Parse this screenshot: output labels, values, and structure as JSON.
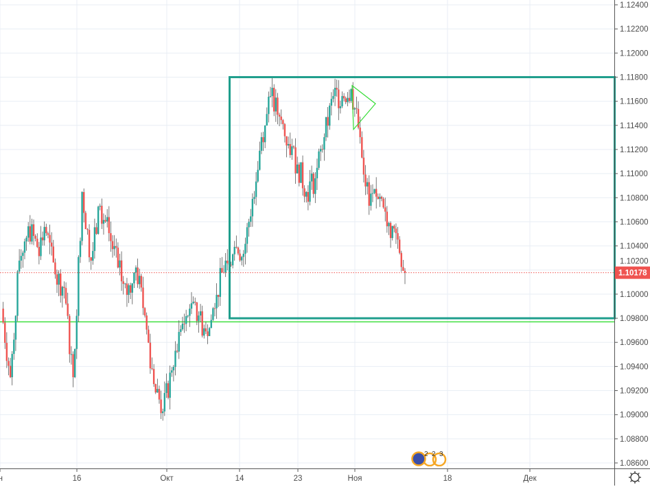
{
  "chart_data": {
    "type": "candlestick",
    "title": "",
    "xlabel": "",
    "ylabel": "",
    "x_tick_labels": [
      "н",
      "16",
      "Окт",
      "14",
      "23",
      "Ноя",
      "18",
      "Дек"
    ],
    "y_tick_labels": [
      "1.12400",
      "1.12200",
      "1.12000",
      "1.11800",
      "1.11600",
      "1.11400",
      "1.11200",
      "1.11000",
      "1.10800",
      "1.10600",
      "1.10400",
      "1.10200",
      "1.10000",
      "1.09800",
      "1.09600",
      "1.09400",
      "1.09200",
      "1.09000",
      "1.08800",
      "1.08600"
    ],
    "ylim": [
      1.0856,
      1.1244
    ],
    "grid": true,
    "closes": [
      1.0988,
      1.09311,
      1.10278,
      1.10563,
      1.10392,
      1.10506,
      1.10164,
      1.10051,
      1.09311,
      1.10847,
      1.10278,
      1.10733,
      1.10506,
      1.10221,
      1.09994,
      1.10221,
      1.09823,
      1.09254,
      1.09027,
      1.09368,
      1.09709,
      1.0988,
      1.09823,
      1.09652,
      1.09994,
      1.10278,
      1.10392,
      1.10335,
      1.1079,
      1.11302,
      1.11643,
      1.11473,
      1.11245,
      1.11075,
      1.10847,
      1.10961,
      1.11302,
      1.11643,
      1.11643,
      1.117,
      1.11302,
      1.10733,
      1.1079,
      1.10563,
      1.10506,
      1.10178
    ],
    "last_price": "1.10178",
    "rectangle": {
      "top_price": 1.118,
      "bottom_price": 1.098,
      "color": "#1e9e8c"
    },
    "horizontal_line": {
      "price": 1.0977,
      "color": "#33dd33"
    },
    "triangle": {
      "points_price": [
        1.1173,
        1.1158,
        1.1148
      ],
      "color": "#33dd33"
    },
    "colors": {
      "up": "#26a69a",
      "down": "#ef5350",
      "last_price_bg": "#ef5350",
      "grid": "#e8eef4"
    }
  },
  "events": {
    "counts": [
      "2",
      "2",
      "3"
    ]
  },
  "controls": {
    "settings_icon": "gear-icon"
  }
}
